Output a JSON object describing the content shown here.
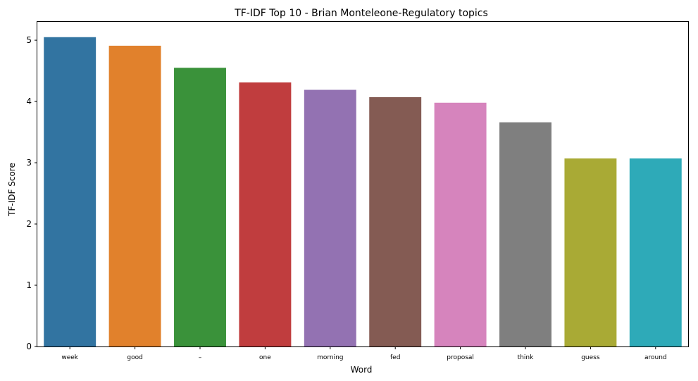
{
  "chart_data": {
    "type": "bar",
    "title": "TF-IDF Top 10 - Brian Monteleone-Regulatory topics",
    "xlabel": "Word",
    "ylabel": "TF-IDF Score",
    "categories": [
      "week",
      "good",
      "–",
      "one",
      "morning",
      "fed",
      "proposal",
      "think",
      "guess",
      "around"
    ],
    "values": [
      5.05,
      4.91,
      4.55,
      4.31,
      4.19,
      4.07,
      3.98,
      3.66,
      3.07,
      3.07
    ],
    "colors": [
      "#3274a1",
      "#e1812c",
      "#3a923a",
      "#c03d3e",
      "#9372b2",
      "#845b53",
      "#d684bd",
      "#7f7f7f",
      "#a9aa35",
      "#2eaab8"
    ],
    "ylim": [
      0,
      5.3
    ],
    "yticks": [
      "0",
      "1",
      "2",
      "3",
      "4",
      "5"
    ],
    "grid": false,
    "legend": "none"
  }
}
